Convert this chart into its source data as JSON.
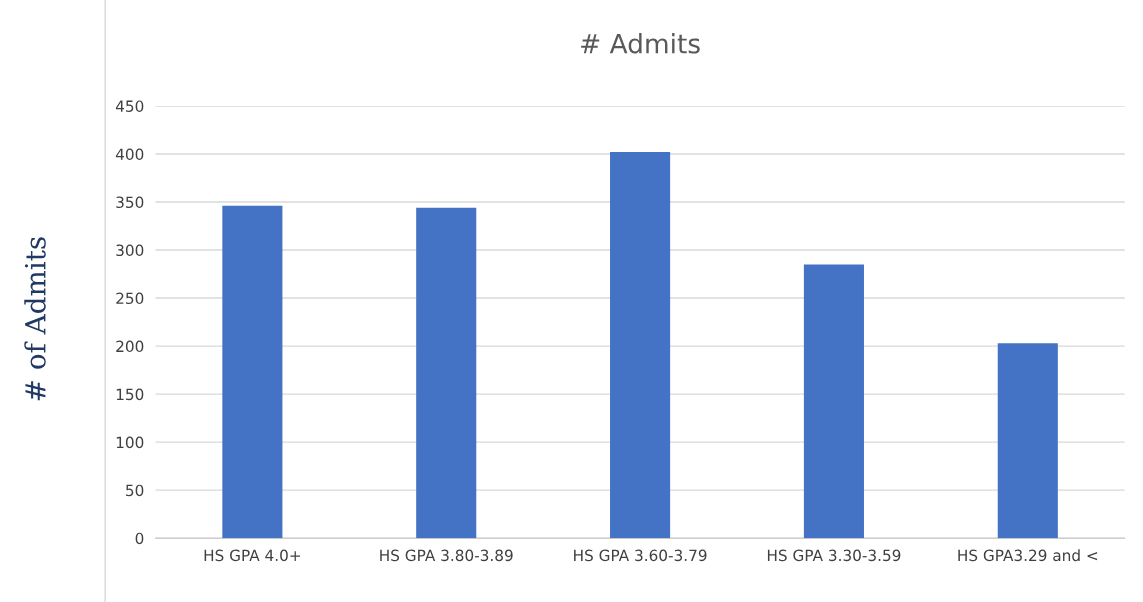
{
  "chart_data": {
    "type": "bar",
    "title": "# Admits",
    "ylabel": "# of Admits",
    "categories": [
      "HS GPA 4.0+",
      "HS GPA 3.80-3.89",
      "HS GPA 3.60-3.79",
      "HS GPA 3.30-3.59",
      "HS GPA3.29 and <"
    ],
    "values": [
      346,
      344,
      402,
      285,
      203
    ],
    "color": "#4472c4",
    "ylim": [
      0,
      450
    ],
    "yticks": [
      0,
      50,
      100,
      150,
      200,
      250,
      300,
      350,
      400,
      450
    ],
    "grid": "y"
  }
}
